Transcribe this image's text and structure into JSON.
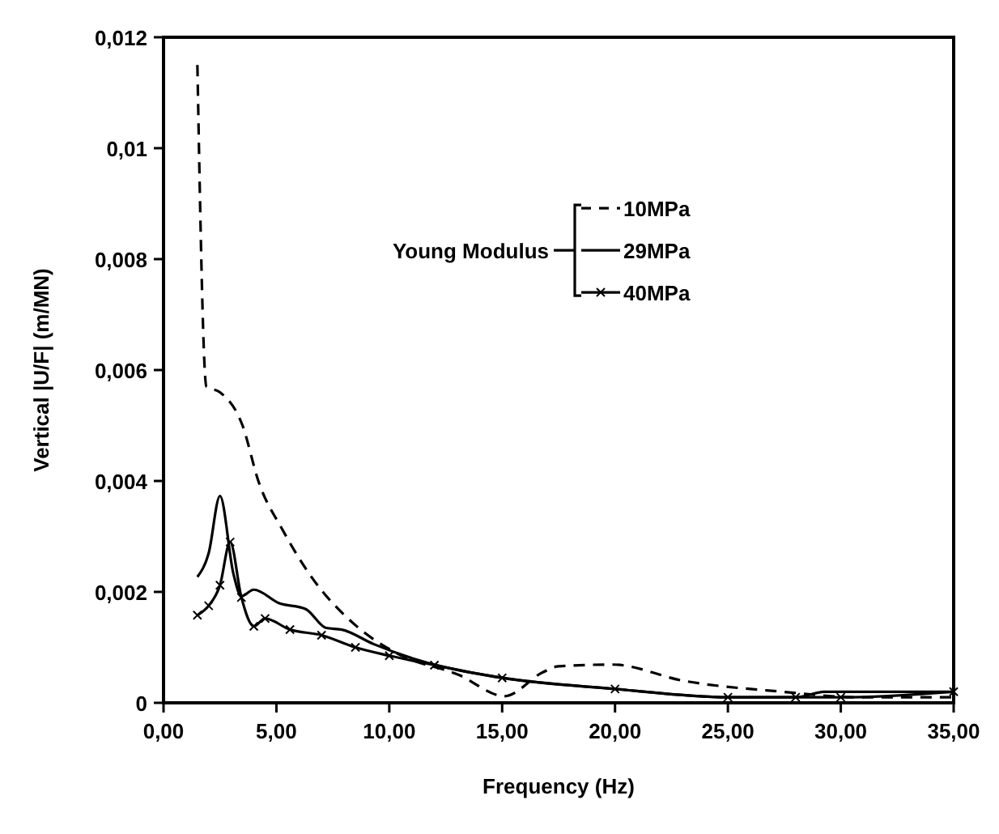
{
  "chart_data": {
    "type": "line",
    "xlabel": "Frequency (Hz)",
    "ylabel": "Vertical  |U/F| (m/MN)",
    "legend_title": "Young Modulus",
    "legend": "top",
    "grid": false,
    "xlim": [
      0,
      35
    ],
    "ylim": [
      0,
      0.012
    ],
    "xticks": [
      {
        "value": 0,
        "label": "0,00"
      },
      {
        "value": 5,
        "label": "5,00"
      },
      {
        "value": 10,
        "label": "10,00"
      },
      {
        "value": 15,
        "label": "15,00"
      },
      {
        "value": 20,
        "label": "20,00"
      },
      {
        "value": 25,
        "label": "25,00"
      },
      {
        "value": 30,
        "label": "30,00"
      },
      {
        "value": 35,
        "label": "35,00"
      }
    ],
    "yticks": [
      0,
      {
        "value": 0.002,
        "label": "0,002"
      },
      {
        "value": 0.004,
        "label": "0,004"
      },
      {
        "value": 0.006,
        "label": "0,006"
      },
      {
        "value": 0.008,
        "label": "0,008"
      },
      {
        "value": 0.01,
        "label": "0,01"
      },
      {
        "value": 0.012,
        "label": "0,012"
      }
    ],
    "series": [
      {
        "name": "10MPa",
        "color": "#000000",
        "line_style": "dashed",
        "marker": "none",
        "x": [
          1.5,
          1.9,
          2.5,
          3.5,
          4.2,
          5.3,
          6.5,
          8.5,
          10.3,
          13.1,
          15.1,
          16.8,
          17.5,
          19.9,
          23,
          27.4,
          30.9,
          35
        ],
        "values": [
          0.0115,
          0.0057,
          0.0056,
          0.005,
          0.004,
          0.0031,
          0.0023,
          0.0014,
          0.0009,
          0.0005,
          0.00012,
          0.00055,
          0.00066,
          0.00069,
          0.0004,
          0.0002,
          0.0001,
          0.0001
        ]
      },
      {
        "name": "29MPa",
        "color": "#000000",
        "line_style": "solid",
        "marker": "none",
        "x": [
          1.5,
          2.0,
          2.5,
          3.1,
          3.45,
          4.0,
          5.1,
          6.3,
          7.2,
          7.9,
          9.3,
          11.2,
          15,
          20,
          25,
          28,
          29.3,
          35
        ],
        "values": [
          0.00227,
          0.0027,
          0.00373,
          0.00232,
          0.00192,
          0.00204,
          0.0018,
          0.00169,
          0.00135,
          0.00132,
          0.00106,
          0.00078,
          0.00045,
          0.00025,
          0.0001,
          0.0001,
          0.0002,
          0.0002
        ]
      },
      {
        "name": "40MPa",
        "color": "#000000",
        "line_style": "solid",
        "marker": "cross",
        "x": [
          1.5,
          2.0,
          2.5,
          2.95,
          3.45,
          4.0,
          4.5,
          5.6,
          7,
          8.5,
          10,
          12,
          15,
          20,
          25,
          28,
          30,
          35
        ],
        "values": [
          0.00158,
          0.00175,
          0.00212,
          0.0029,
          0.0019,
          0.00138,
          0.00152,
          0.00132,
          0.00122,
          0.001,
          0.00085,
          0.00068,
          0.00045,
          0.00025,
          0.0001,
          0.0001,
          0.0001,
          0.0002
        ]
      }
    ]
  }
}
